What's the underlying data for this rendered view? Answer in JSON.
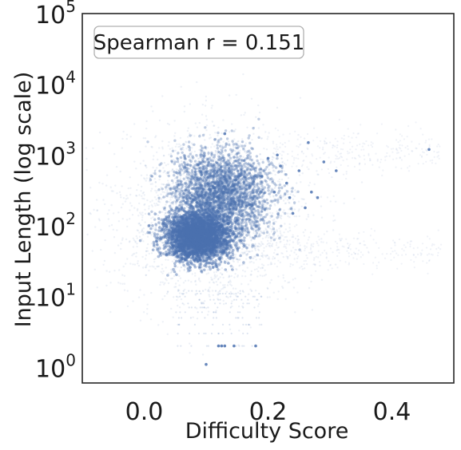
{
  "chart_data": {
    "type": "scatter",
    "xlabel": "Difficulty Score",
    "ylabel": "Input Length (log scale)",
    "annotation": "Spearman r = 0.151",
    "xlim": [
      -0.1,
      0.5
    ],
    "ylim": [
      0.6,
      100000
    ],
    "y_scale": "log",
    "x_ticks": [
      {
        "value": 0.0,
        "label": "0.0"
      },
      {
        "value": 0.2,
        "label": "0.2"
      },
      {
        "value": 0.4,
        "label": "0.4"
      }
    ],
    "y_ticks": [
      {
        "value": 1,
        "base": "10",
        "exp": "0"
      },
      {
        "value": 10,
        "base": "10",
        "exp": "1"
      },
      {
        "value": 100,
        "base": "10",
        "exp": "2"
      },
      {
        "value": 1000,
        "base": "10",
        "exp": "3"
      },
      {
        "value": 10000,
        "base": "10",
        "exp": "4"
      },
      {
        "value": 100000,
        "base": "10",
        "exp": "5"
      }
    ],
    "grid": false,
    "point_color": "#4c72b0",
    "outlier_points": [
      {
        "x": 0.1,
        "y": 1.1
      },
      {
        "x": 0.12,
        "y": 2
      },
      {
        "x": 0.125,
        "y": 2
      },
      {
        "x": 0.13,
        "y": 2
      },
      {
        "x": 0.145,
        "y": 2
      },
      {
        "x": 0.18,
        "y": 2
      },
      {
        "x": 0.13,
        "y": 2000
      },
      {
        "x": 0.2,
        "y": 900
      },
      {
        "x": 0.22,
        "y": 700
      },
      {
        "x": 0.25,
        "y": 600
      },
      {
        "x": 0.265,
        "y": 1500
      },
      {
        "x": 0.27,
        "y": 300
      },
      {
        "x": 0.28,
        "y": 250
      },
      {
        "x": 0.29,
        "y": 800
      },
      {
        "x": 0.31,
        "y": 600
      },
      {
        "x": 0.24,
        "y": 150
      },
      {
        "x": 0.26,
        "y": 180
      },
      {
        "x": 0.23,
        "y": 400
      },
      {
        "x": 0.21,
        "y": 300
      },
      {
        "x": 0.19,
        "y": 500
      },
      {
        "x": 0.17,
        "y": 200
      },
      {
        "x": 0.15,
        "y": 120
      },
      {
        "x": 0.215,
        "y": 1000
      },
      {
        "x": 0.235,
        "y": 250
      },
      {
        "x": 0.46,
        "y": 1200
      }
    ]
  }
}
